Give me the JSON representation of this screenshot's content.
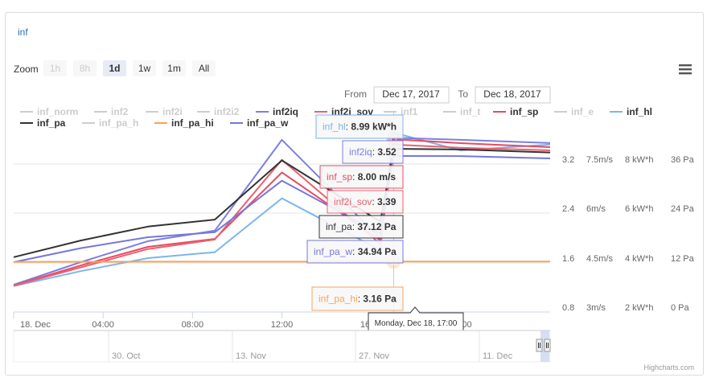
{
  "panel": {
    "title": "inf"
  },
  "rangeSelector": {
    "zoom_label": "Zoom",
    "buttons": [
      {
        "label": "1h",
        "state": "disabled"
      },
      {
        "label": "8h",
        "state": "disabled"
      },
      {
        "label": "1d",
        "state": "selected"
      },
      {
        "label": "1w",
        "state": "normal"
      },
      {
        "label": "1m",
        "state": "normal"
      },
      {
        "label": "All",
        "state": "normal"
      }
    ],
    "from_label": "From",
    "from_value": "Dec 17, 2017",
    "to_label": "To",
    "to_value": "Dec 18, 2017"
  },
  "menu_icon": "hamburger-menu-icon",
  "credits": "Highcharts.com",
  "chart_data": {
    "type": "line",
    "x_tick_labels": [
      "18. Dec",
      "04:00",
      "08:00",
      "12:00",
      "16:00",
      "20:00"
    ],
    "x_ticks_hours": [
      0,
      4,
      8,
      12,
      16,
      20
    ],
    "xlim_hours": [
      0,
      24
    ],
    "legend": {
      "placement": "top",
      "items": [
        {
          "name": "inf_norm",
          "color": "#cccccc",
          "visible": false
        },
        {
          "name": "inf2",
          "color": "#cccccc",
          "visible": false
        },
        {
          "name": "inf2i",
          "color": "#cccccc",
          "visible": false
        },
        {
          "name": "inf2i2",
          "color": "#cccccc",
          "visible": false
        },
        {
          "name": "inf2iq",
          "color": "#7b7fe0",
          "visible": true
        },
        {
          "name": "inf2i_sov",
          "color": "#e8616f",
          "visible": true
        },
        {
          "name": "inf1",
          "color": "#cccccc",
          "visible": false
        },
        {
          "name": "inf_t",
          "color": "#cccccc",
          "visible": false
        },
        {
          "name": "inf_sp",
          "color": "#e84a5f",
          "visible": true
        },
        {
          "name": "inf_e",
          "color": "#cccccc",
          "visible": false
        },
        {
          "name": "inf_hl",
          "color": "#7cb5ec",
          "visible": true
        },
        {
          "name": "inf_pa",
          "color": "#333333",
          "visible": true
        },
        {
          "name": "inf_pa_h",
          "color": "#cccccc",
          "visible": false
        },
        {
          "name": "inf_pa_hi",
          "color": "#f7a35c",
          "visible": true
        },
        {
          "name": "inf_pa_w",
          "color": "#7477dc",
          "visible": true
        }
      ]
    },
    "y_axes": [
      {
        "ticks": [
          "0.8",
          "1.6",
          "2.4",
          "3.2"
        ]
      },
      {
        "ticks": [
          "3m/s",
          "4.5m/s",
          "6m/s",
          "7.5m/s"
        ]
      },
      {
        "ticks": [
          "2 kW*h",
          "4 kW*h",
          "6 kW*h",
          "8 kW*h"
        ]
      },
      {
        "ticks": [
          "0 Pa",
          "12 Pa",
          "24 Pa",
          "36 Pa"
        ]
      }
    ],
    "series": [
      {
        "name": "inf_hl",
        "color": "#7cb5ec",
        "unit": "kW*h",
        "ylim": [
          0,
          10
        ],
        "x": [
          0,
          3,
          6,
          9,
          12,
          16.4,
          17,
          20,
          24
        ],
        "y": [
          1.3,
          2.05,
          2.7,
          3.0,
          5.7,
          3.1,
          8.99,
          8.1,
          8.4
        ]
      },
      {
        "name": "inf2iq",
        "color": "#7b7fe0",
        "unit": "",
        "ylim": [
          0.2,
          4.0
        ],
        "x": [
          0,
          3,
          6,
          9,
          12,
          16.4,
          17,
          20,
          24
        ],
        "y": [
          0.72,
          1.15,
          1.55,
          1.75,
          3.48,
          1.6,
          3.52,
          3.48,
          3.42
        ]
      },
      {
        "name": "inf_sp",
        "color": "#e84a5f",
        "unit": "m/s",
        "ylim": [
          1.5,
          9
        ],
        "x": [
          0,
          3,
          6,
          9,
          12,
          16.4,
          17,
          20,
          24
        ],
        "y": [
          2.5,
          3.25,
          3.95,
          4.25,
          6.75,
          4.2,
          8.0,
          7.85,
          7.7
        ]
      },
      {
        "name": "inf2i_sov",
        "color": "#e8616f",
        "unit": "",
        "ylim": [
          0.2,
          4.0
        ],
        "x": [
          0,
          3,
          6,
          9,
          12,
          16.4,
          17,
          20,
          24
        ],
        "y": [
          0.7,
          1.05,
          1.4,
          1.58,
          3.1,
          1.5,
          3.39,
          3.33,
          3.28
        ]
      },
      {
        "name": "inf_pa",
        "color": "#333333",
        "unit": "Pa",
        "ylim": [
          -12,
          48
        ],
        "x": [
          0,
          3,
          6,
          9,
          12,
          16.4,
          17,
          20,
          24
        ],
        "y": [
          4.5,
          9.5,
          13.7,
          15.8,
          33.6,
          15.2,
          37.12,
          36.9,
          36.0
        ]
      },
      {
        "name": "inf_pa_w",
        "color": "#7477dc",
        "unit": "Pa",
        "ylim": [
          -12,
          48
        ],
        "x": [
          0,
          3,
          6,
          9,
          12,
          16.4,
          17,
          20,
          24
        ],
        "y": [
          3.0,
          7.2,
          10.5,
          12.0,
          27.5,
          11.6,
          34.94,
          34.9,
          34.2
        ]
      },
      {
        "name": "inf_pa_hi",
        "color": "#f7a35c",
        "unit": "Pa",
        "ylim": [
          -12,
          48
        ],
        "x": [
          0,
          3,
          6,
          9,
          12,
          16.4,
          17,
          20,
          24
        ],
        "y": [
          3.1,
          3.13,
          3.14,
          3.15,
          3.15,
          3.15,
          3.16,
          3.17,
          3.18
        ]
      }
    ],
    "tooltip": {
      "header": "Monday, Dec 18, 17:00",
      "entries": [
        {
          "name": "inf_hl",
          "value": "8.99 kW*h"
        },
        {
          "name": "inf2iq",
          "value": "3.52"
        },
        {
          "name": "inf_sp",
          "value": "8.00 m/s"
        },
        {
          "name": "inf2i_sov",
          "value": "3.39"
        },
        {
          "name": "inf_pa",
          "value": "37.12 Pa"
        },
        {
          "name": "inf_pa_w",
          "value": "34.94 Pa"
        },
        {
          "name": "inf_pa_hi",
          "value": "3.16 Pa"
        }
      ]
    },
    "navigator": {
      "tick_labels": [
        "30. Oct",
        "13. Nov",
        "27. Nov",
        "11. Dec"
      ]
    }
  }
}
